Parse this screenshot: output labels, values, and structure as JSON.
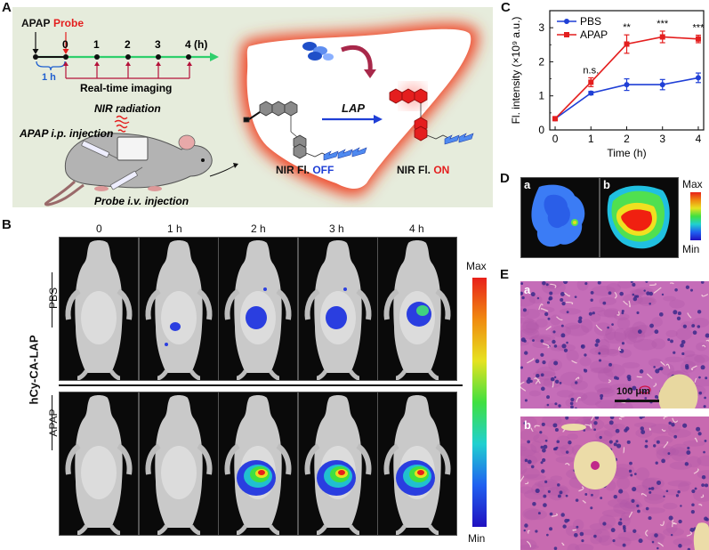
{
  "panels": {
    "A": "A",
    "B": "B",
    "C": "C",
    "D": "D",
    "E": "E"
  },
  "panelA": {
    "apap_label": "APAP",
    "probe_label": "Probe",
    "timeline_ticks": [
      "0",
      "1",
      "2",
      "3",
      "4 (h)"
    ],
    "one_h": "1 h",
    "realtime": "Real-time imaging",
    "nir_radiation": "NIR radiation",
    "apap_injection": "APAP i.p. injection",
    "probe_injection": "Probe i.v. injection",
    "enzyme": "LAP",
    "off_prefix": "NIR Fl. ",
    "off_word": "OFF",
    "on_prefix": "NIR Fl. ",
    "on_word": "ON",
    "colors": {
      "probe_red": "#e41e1e",
      "timeline_green": "#2fcf6c",
      "tick_red": "#b5123a",
      "liver_glow": "#f04a2a"
    }
  },
  "panelB": {
    "time_labels": [
      "0",
      "1 h",
      "2 h",
      "3 h",
      "4 h"
    ],
    "group_label": "hCy-CA-LAP",
    "row_labels": [
      "PBS",
      "APAP"
    ],
    "scale_max": "Max",
    "scale_min": "Min"
  },
  "chart_data": {
    "type": "line",
    "xlabel": "Time (h)",
    "ylabel": "Fl. intensity (×10⁹ a.u.)",
    "x": [
      0,
      1,
      2,
      3,
      4
    ],
    "xlim": [
      -0.15,
      4.15
    ],
    "ylim": [
      0,
      3.5
    ],
    "xticks": [
      "0",
      "1",
      "2",
      "3",
      "4"
    ],
    "yticks": [
      "0",
      "1",
      "2",
      "3"
    ],
    "series": [
      {
        "name": "PBS",
        "color": "#1f3fd6",
        "values": [
          0.33,
          1.08,
          1.33,
          1.33,
          1.53
        ],
        "errors": [
          0.04,
          0.05,
          0.17,
          0.15,
          0.14
        ]
      },
      {
        "name": "APAP",
        "color": "#e41e1e",
        "values": [
          0.33,
          1.4,
          2.52,
          2.73,
          2.67
        ],
        "errors": [
          0.04,
          0.13,
          0.27,
          0.17,
          0.11
        ]
      }
    ],
    "annotations": [
      "n.s.",
      "**",
      "***",
      "***"
    ],
    "legend": "top-left"
  },
  "panelD": {
    "a": "a",
    "b": "b",
    "scale_max": "Max",
    "scale_min": "Min"
  },
  "panelE": {
    "a": "a",
    "b": "b",
    "scale_bar": "100 μm"
  }
}
